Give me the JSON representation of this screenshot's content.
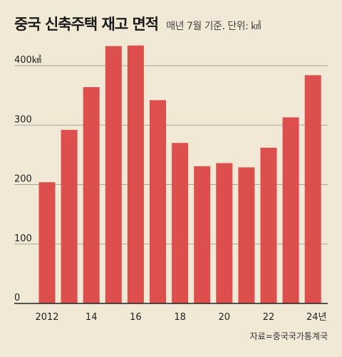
{
  "header": {
    "title": "중국 신축주택 재고 면적",
    "subtitle": "매년 7월 기준. 단위: ㎢"
  },
  "source": "자료=중국국가통계국",
  "colors": {
    "bar": "#dc4f4c",
    "grid": "#a9a39a",
    "axis": "#222222"
  },
  "chart_data": {
    "type": "bar",
    "title": "중국 신축주택 재고 면적",
    "subtitle": "매년 7월 기준. 단위: ㎢",
    "categories": [
      "2012",
      "2013",
      "2014",
      "2015",
      "2016",
      "2017",
      "2018",
      "2019",
      "2020",
      "2021",
      "2022",
      "2023",
      "2024"
    ],
    "values": [
      204,
      292,
      364,
      433,
      434,
      342,
      270,
      231,
      236,
      229,
      262,
      313,
      384
    ],
    "x_tick_labels": [
      "2012",
      "14",
      "16",
      "18",
      "20",
      "22",
      "24년"
    ],
    "y_ticks": [
      0,
      100,
      200,
      300
    ],
    "y_tick_labels": [
      "0",
      "100",
      "200",
      "300"
    ],
    "y_top_label": "400㎢",
    "ylim": [
      0,
      400
    ],
    "grid": true
  }
}
